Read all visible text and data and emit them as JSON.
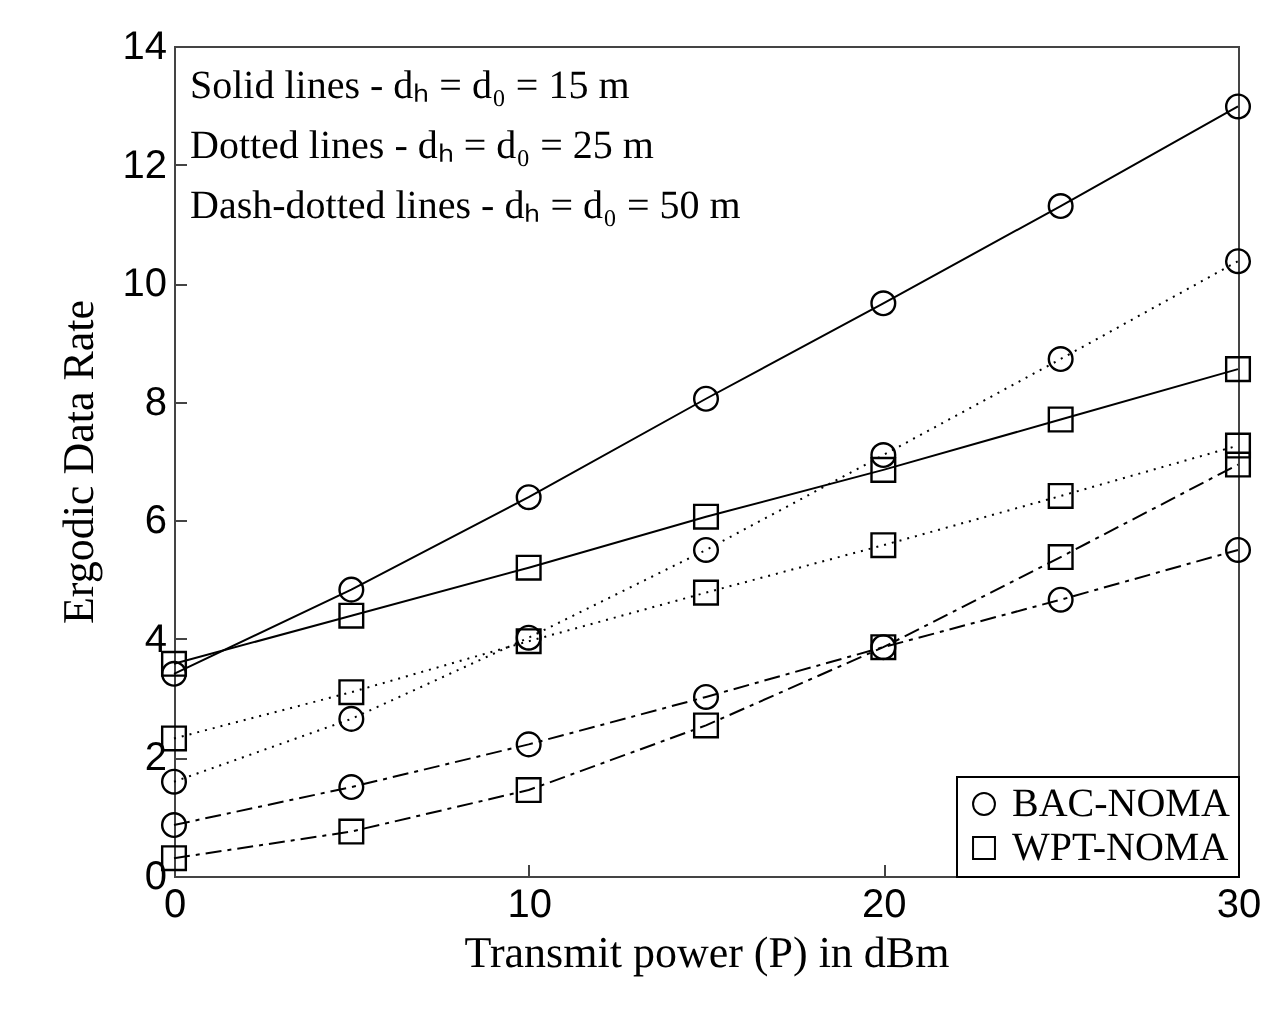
{
  "chart_data": {
    "type": "line",
    "xlabel": "Transmit power (P) in dBm",
    "ylabel": "Ergodic Data Rate",
    "x": [
      0,
      5,
      10,
      15,
      20,
      25,
      30
    ],
    "series": [
      {
        "name": "BAC-NOMA",
        "color": "#000000",
        "marker": "circle",
        "line_style": "solid",
        "values": [
          3.41,
          4.83,
          6.39,
          8.05,
          9.66,
          11.3,
          12.98
        ]
      },
      {
        "name": "WPT-NOMA",
        "color": "#000000",
        "marker": "square",
        "line_style": "solid",
        "values": [
          3.58,
          4.39,
          5.2,
          6.06,
          6.85,
          7.7,
          8.55
        ]
      },
      {
        "color": "#000000",
        "marker": "circle",
        "line_style": "dotted",
        "values": [
          1.59,
          2.65,
          4.02,
          5.5,
          7.1,
          8.72,
          10.37
        ]
      },
      {
        "color": "#000000",
        "marker": "square",
        "line_style": "dotted",
        "values": [
          2.32,
          3.1,
          3.96,
          4.78,
          5.58,
          6.41,
          7.26
        ]
      },
      {
        "color": "#000000",
        "marker": "circle",
        "line_style": "dashed",
        "values": [
          0.86,
          1.5,
          2.22,
          3.02,
          3.86,
          4.66,
          5.5
        ]
      },
      {
        "color": "#000000",
        "marker": "square",
        "line_style": "dashed",
        "values": [
          0.3,
          0.75,
          1.45,
          2.54,
          3.86,
          5.38,
          6.94
        ]
      }
    ],
    "xlim": [
      0,
      30
    ],
    "xticks": [
      0,
      10,
      20,
      30
    ],
    "ylim": [
      0,
      14
    ],
    "yticks": [
      0,
      2,
      4,
      6,
      8,
      10,
      12,
      14
    ],
    "annotations": [
      "Solid lines - dₕ = d₀ = 15 m",
      "Dotted lines - dₕ = d₀ = 25 m",
      "Dash-dotted lines - dₕ = d₀ = 50 m"
    ],
    "legend": "bottom right",
    "grid": false
  }
}
